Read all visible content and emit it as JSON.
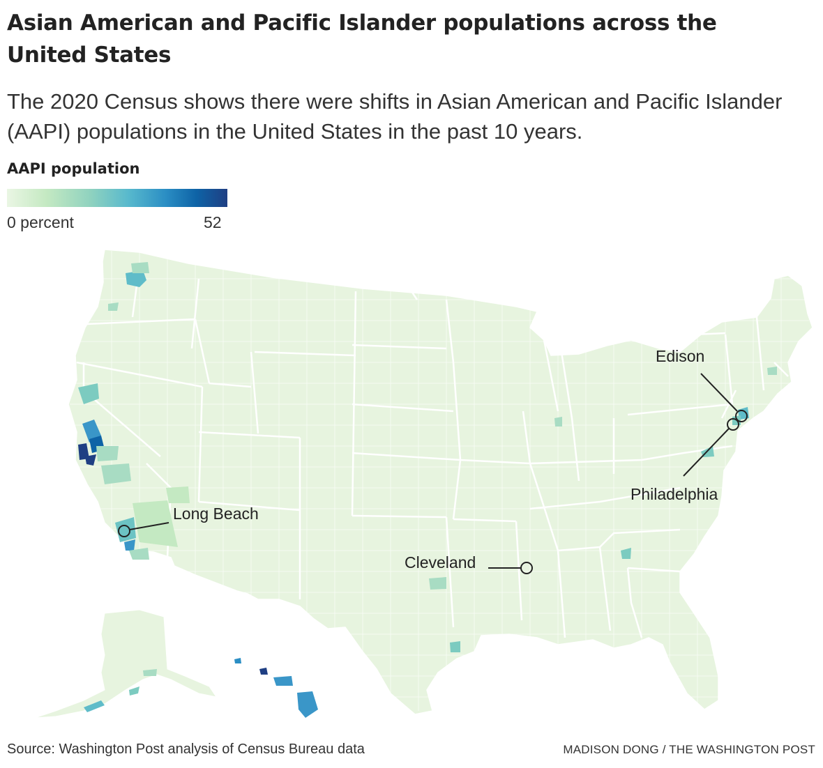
{
  "header": {
    "title": "Asian American and Pacific Islander populations across the United States",
    "subtitle": "The 2020 Census shows there were shifts in Asian American and Pacific Islander (AAPI) populations in the United States in the past 10 years."
  },
  "legend": {
    "title": "AAPI population",
    "min_label": "0 percent",
    "max_label": "52",
    "min_value": 0,
    "max_value": 52,
    "colors": [
      "#eaf6e4",
      "#c4e9c2",
      "#8fd2bf",
      "#58b9cd",
      "#2b8ec4",
      "#0e63a6",
      "#1f3f83"
    ]
  },
  "map": {
    "callouts": [
      {
        "name": "Long Beach"
      },
      {
        "name": "Cleveland"
      },
      {
        "name": "Edison"
      },
      {
        "name": "Philadelphia"
      }
    ],
    "colors": {
      "base": "#e7f4df",
      "border": "#ffffff",
      "highlight_light": "#c4e9c2",
      "highlight_mid": "#7ccbc0",
      "highlight_strong": "#3a96c8",
      "highlight_max": "#1f3f83"
    }
  },
  "footer": {
    "source": "Source: Washington Post analysis of Census Bureau data",
    "credit": "MADISON DONG / THE WASHINGTON POST"
  }
}
